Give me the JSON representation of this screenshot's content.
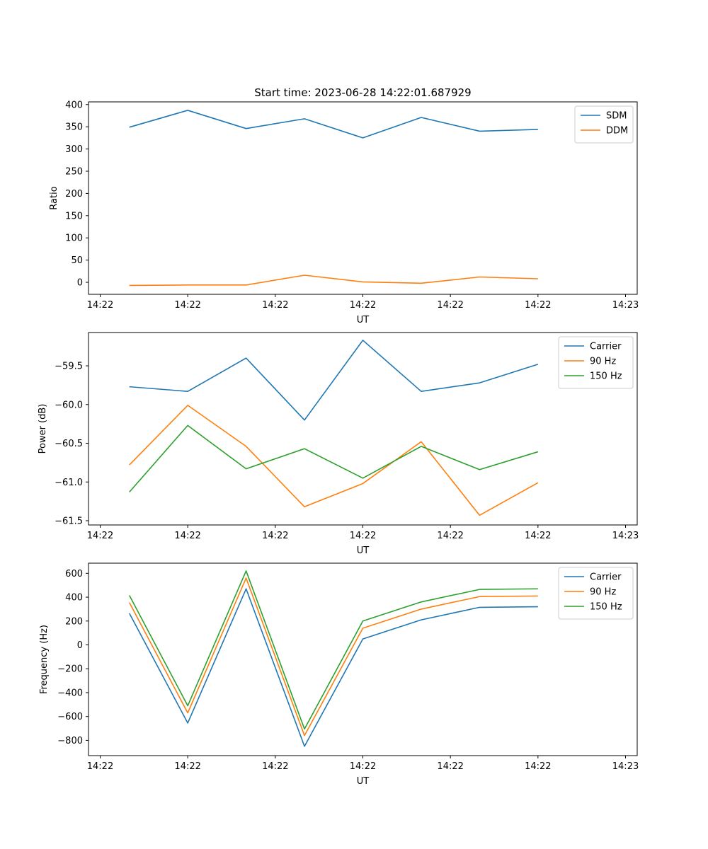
{
  "figure_title": "Start time: 2023-06-28 14:22:01.687929",
  "chart_data": [
    {
      "type": "line",
      "title": "Start time: 2023-06-28 14:22:01.687929",
      "xlabel": "UT",
      "ylabel": "Ratio",
      "x": [
        1,
        2,
        3,
        4,
        5,
        6,
        7,
        8
      ],
      "xlim": [
        0.3,
        9.7
      ],
      "x_ticks": [
        0.5,
        2,
        3.5,
        5,
        6.5,
        8,
        9.5
      ],
      "x_tick_labels": [
        "14:22",
        "14:22",
        "14:22",
        "14:22",
        "14:22",
        "14:22",
        "14:23"
      ],
      "ylim": [
        -27,
        406
      ],
      "y_ticks": [
        0,
        50,
        100,
        150,
        200,
        250,
        300,
        350,
        400
      ],
      "y_tick_labels": [
        "0",
        "50",
        "100",
        "150",
        "200",
        "250",
        "300",
        "350",
        "400"
      ],
      "grid": false,
      "legend_position": "top-right",
      "series": [
        {
          "name": "SDM",
          "color": "#1f77b4",
          "values": [
            349,
            387,
            346,
            368,
            325,
            371,
            340,
            344
          ]
        },
        {
          "name": "DDM",
          "color": "#ff7f0e",
          "values": [
            -7,
            -6,
            -6,
            16,
            1,
            -2,
            12,
            8
          ]
        }
      ]
    },
    {
      "type": "line",
      "title": "",
      "xlabel": "UT",
      "ylabel": "Power (dB)",
      "x": [
        1,
        2,
        3,
        4,
        5,
        6,
        7,
        8
      ],
      "xlim": [
        0.3,
        9.7
      ],
      "x_ticks": [
        0.5,
        2,
        3.5,
        5,
        6.5,
        8,
        9.5
      ],
      "x_tick_labels": [
        "14:22",
        "14:22",
        "14:22",
        "14:22",
        "14:22",
        "14:22",
        "14:23"
      ],
      "ylim": [
        -61.555,
        -59.07
      ],
      "y_ticks": [
        -59.5,
        -60.0,
        -60.5,
        -61.0,
        -61.5
      ],
      "y_tick_labels": [
        "−59.5",
        "−60.0",
        "−60.5",
        "−61.0",
        "−61.5"
      ],
      "grid": false,
      "legend_position": "top-right",
      "series": [
        {
          "name": "Carrier",
          "color": "#1f77b4",
          "values": [
            -59.77,
            -59.83,
            -59.4,
            -60.2,
            -59.17,
            -59.83,
            -59.72,
            -59.48
          ]
        },
        {
          "name": "90 Hz",
          "color": "#ff7f0e",
          "values": [
            -60.78,
            -60.01,
            -60.54,
            -61.32,
            -61.02,
            -60.48,
            -61.43,
            -61.01
          ]
        },
        {
          "name": "150 Hz",
          "color": "#2ca02c",
          "values": [
            -61.13,
            -60.27,
            -60.83,
            -60.57,
            -60.95,
            -60.54,
            -60.84,
            -60.61
          ]
        }
      ]
    },
    {
      "type": "line",
      "title": "",
      "xlabel": "UT",
      "ylabel": "Frequency (Hz)",
      "x": [
        1,
        2,
        3,
        4,
        5,
        6,
        7,
        8
      ],
      "xlim": [
        0.3,
        9.7
      ],
      "x_ticks": [
        0.5,
        2,
        3.5,
        5,
        6.5,
        8,
        9.5
      ],
      "x_tick_labels": [
        "14:22",
        "14:22",
        "14:22",
        "14:22",
        "14:22",
        "14:22",
        "14:23"
      ],
      "ylim": [
        -928,
        685
      ],
      "y_ticks": [
        600,
        400,
        200,
        0,
        -200,
        -400,
        -600,
        -800
      ],
      "y_tick_labels": [
        "600",
        "400",
        "200",
        "0",
        "−200",
        "−400",
        "−600",
        "−800"
      ],
      "grid": false,
      "legend_position": "top-right",
      "series": [
        {
          "name": "Carrier",
          "color": "#1f77b4",
          "values": [
            265,
            -655,
            470,
            -850,
            50,
            210,
            315,
            320
          ]
        },
        {
          "name": "90 Hz",
          "color": "#ff7f0e",
          "values": [
            355,
            -570,
            560,
            -760,
            140,
            300,
            405,
            410
          ]
        },
        {
          "name": "150 Hz",
          "color": "#2ca02c",
          "values": [
            415,
            -510,
            620,
            -705,
            200,
            360,
            465,
            470
          ]
        }
      ]
    }
  ]
}
